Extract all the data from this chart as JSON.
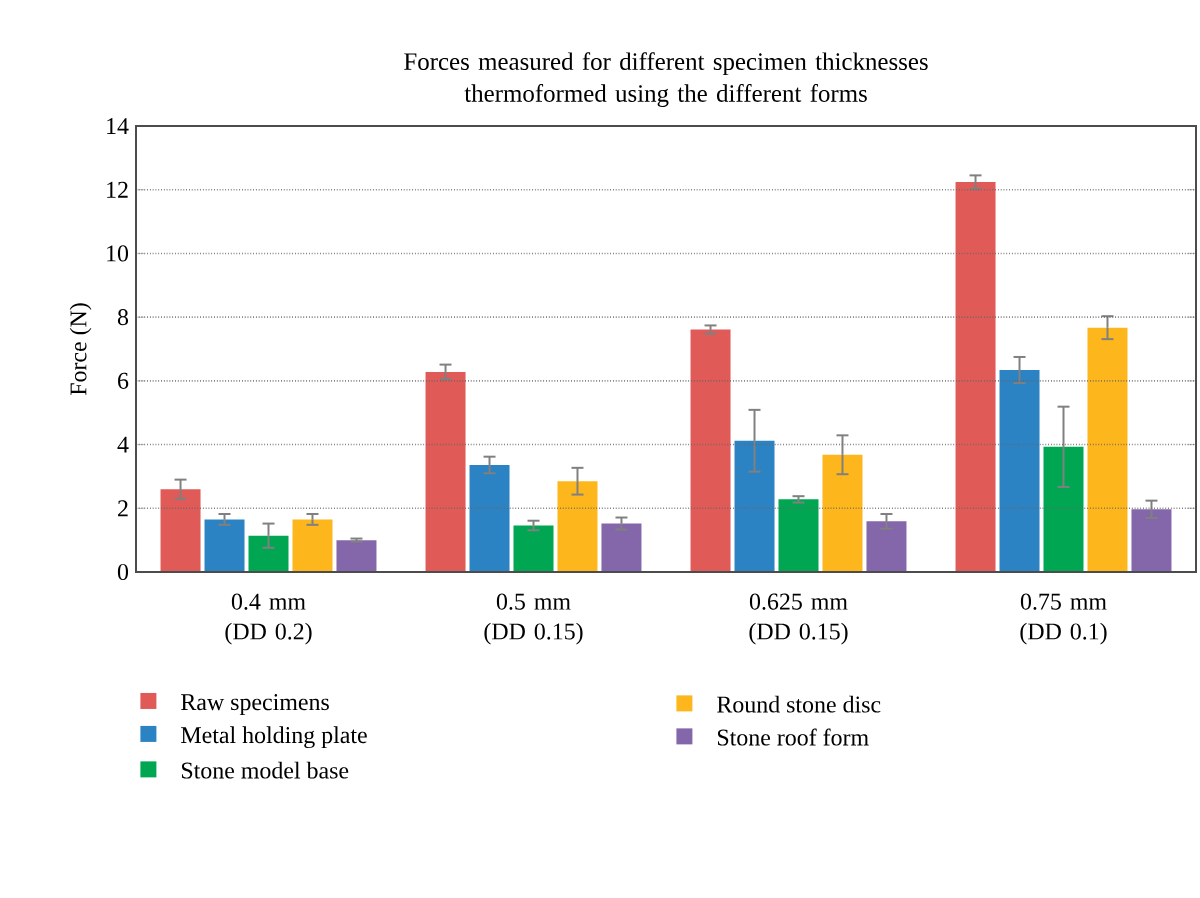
{
  "chart_data": {
    "type": "bar",
    "title": "Forces measured for different specimen thicknesses thermoformed using the different forms",
    "ylabel": "Force (N)",
    "categories": [
      "0.4 mm (DD 0.2)",
      "0.5 mm (DD 0.15)",
      "0.625 mm (DD 0.15)",
      "0.75 mm (DD 0.1)"
    ],
    "series": [
      {
        "name": "Raw specimens",
        "color": "#e05a57",
        "values": [
          2.6,
          6.28,
          7.61,
          12.24
        ],
        "errors": [
          0.3,
          0.23,
          0.13,
          0.21
        ]
      },
      {
        "name": "Metal holding plate",
        "color": "#2b83c4",
        "values": [
          1.65,
          3.36,
          4.12,
          6.34
        ],
        "errors": [
          0.17,
          0.26,
          0.97,
          0.41
        ]
      },
      {
        "name": "Stone model base",
        "color": "#00a651",
        "values": [
          1.14,
          1.46,
          2.28,
          3.93
        ],
        "errors": [
          0.38,
          0.15,
          0.1,
          1.26
        ]
      },
      {
        "name": "Round stone disc",
        "color": "#fdb61c",
        "values": [
          1.65,
          2.85,
          3.68,
          7.67
        ],
        "errors": [
          0.17,
          0.42,
          0.61,
          0.36
        ]
      },
      {
        "name": "Stone roof form",
        "color": "#8466aa",
        "values": [
          1.0,
          1.52,
          1.59,
          1.97
        ],
        "errors": [
          0.05,
          0.19,
          0.23,
          0.27
        ]
      }
    ],
    "ylim": [
      0,
      14
    ],
    "yticks": [
      0,
      2,
      4,
      6,
      8,
      10,
      12,
      14
    ],
    "grid": "y",
    "legend": "bottom left"
  }
}
